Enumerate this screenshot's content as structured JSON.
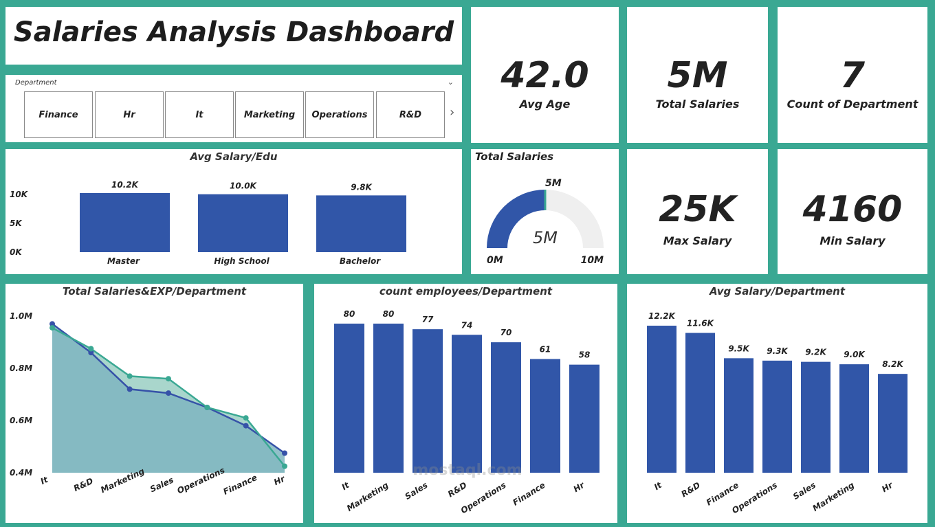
{
  "dashboard": {
    "title": "Salaries Analysis Dashboard",
    "colors": {
      "bar": "#3156a8",
      "accent": "#3aa893",
      "area": "#7fb5c0",
      "line1": "#3652a8",
      "line2": "#3aa893"
    }
  },
  "slicer": {
    "label": "Department",
    "items": [
      "Finance",
      "Hr",
      "It",
      "Marketing",
      "Operations",
      "R&D"
    ]
  },
  "kpis": {
    "avg_age": {
      "value": "42.0",
      "label": "Avg Age"
    },
    "total_salaries": {
      "value": "5M",
      "label": "Total Salaries"
    },
    "count_department": {
      "value": "7",
      "label": "Count of Department"
    },
    "max_salary": {
      "value": "25K",
      "label": "Max Salary"
    },
    "min_salary": {
      "value": "4160",
      "label": "Min Salary"
    }
  },
  "gauge": {
    "title": "Total Salaries",
    "value_label": "5M",
    "target_label": "5M",
    "min_label": "0M",
    "max_label": "10M"
  },
  "watermark": {
    "text": "mostaql.com"
  },
  "chart_data": [
    {
      "id": "avg-salary-edu",
      "type": "bar",
      "title": "Avg Salary/Edu",
      "categories": [
        "Master",
        "High School",
        "Bachelor"
      ],
      "values": [
        10200,
        10000,
        9800
      ],
      "data_labels": [
        "10.2K",
        "10.0K",
        "9.8K"
      ],
      "yticks": [
        "0K",
        "5K",
        "10K"
      ],
      "ylim": [
        0,
        10200
      ]
    },
    {
      "id": "total-salaries-exp",
      "type": "area",
      "title": "Total Salaries&EXP/Department",
      "categories": [
        "It",
        "R&D",
        "Marketing",
        "Sales",
        "Operations",
        "Finance",
        "Hr"
      ],
      "series": [
        {
          "values": [
            0.97,
            0.86,
            0.72,
            0.705,
            0.65,
            0.58,
            0.475
          ]
        },
        {
          "values": [
            0.955,
            0.875,
            0.77,
            0.76,
            0.65,
            0.61,
            0.425
          ]
        }
      ],
      "yticks": [
        "0.4M",
        "0.6M",
        "0.8M",
        "1.0M"
      ],
      "ylim": [
        0.4,
        1.0
      ]
    },
    {
      "id": "count-employees",
      "type": "bar",
      "title": "count employees/Department",
      "categories": [
        "It",
        "Marketing",
        "Sales",
        "R&D",
        "Operations",
        "Finance",
        "Hr"
      ],
      "values": [
        80,
        80,
        77,
        74,
        70,
        61,
        58
      ],
      "data_labels": [
        "80",
        "80",
        "77",
        "74",
        "70",
        "61",
        "58"
      ],
      "ylim": [
        0,
        80
      ]
    },
    {
      "id": "avg-salary-department",
      "type": "bar",
      "title": "Avg Salary/Department",
      "categories": [
        "It",
        "R&D",
        "Finance",
        "Operations",
        "Sales",
        "Marketing",
        "Hr"
      ],
      "values": [
        12200,
        11600,
        9500,
        9300,
        9200,
        9000,
        8200
      ],
      "data_labels": [
        "12.2K",
        "11.6K",
        "9.5K",
        "9.3K",
        "9.2K",
        "9.0K",
        "8.2K"
      ],
      "ylim": [
        0,
        12200
      ]
    }
  ]
}
